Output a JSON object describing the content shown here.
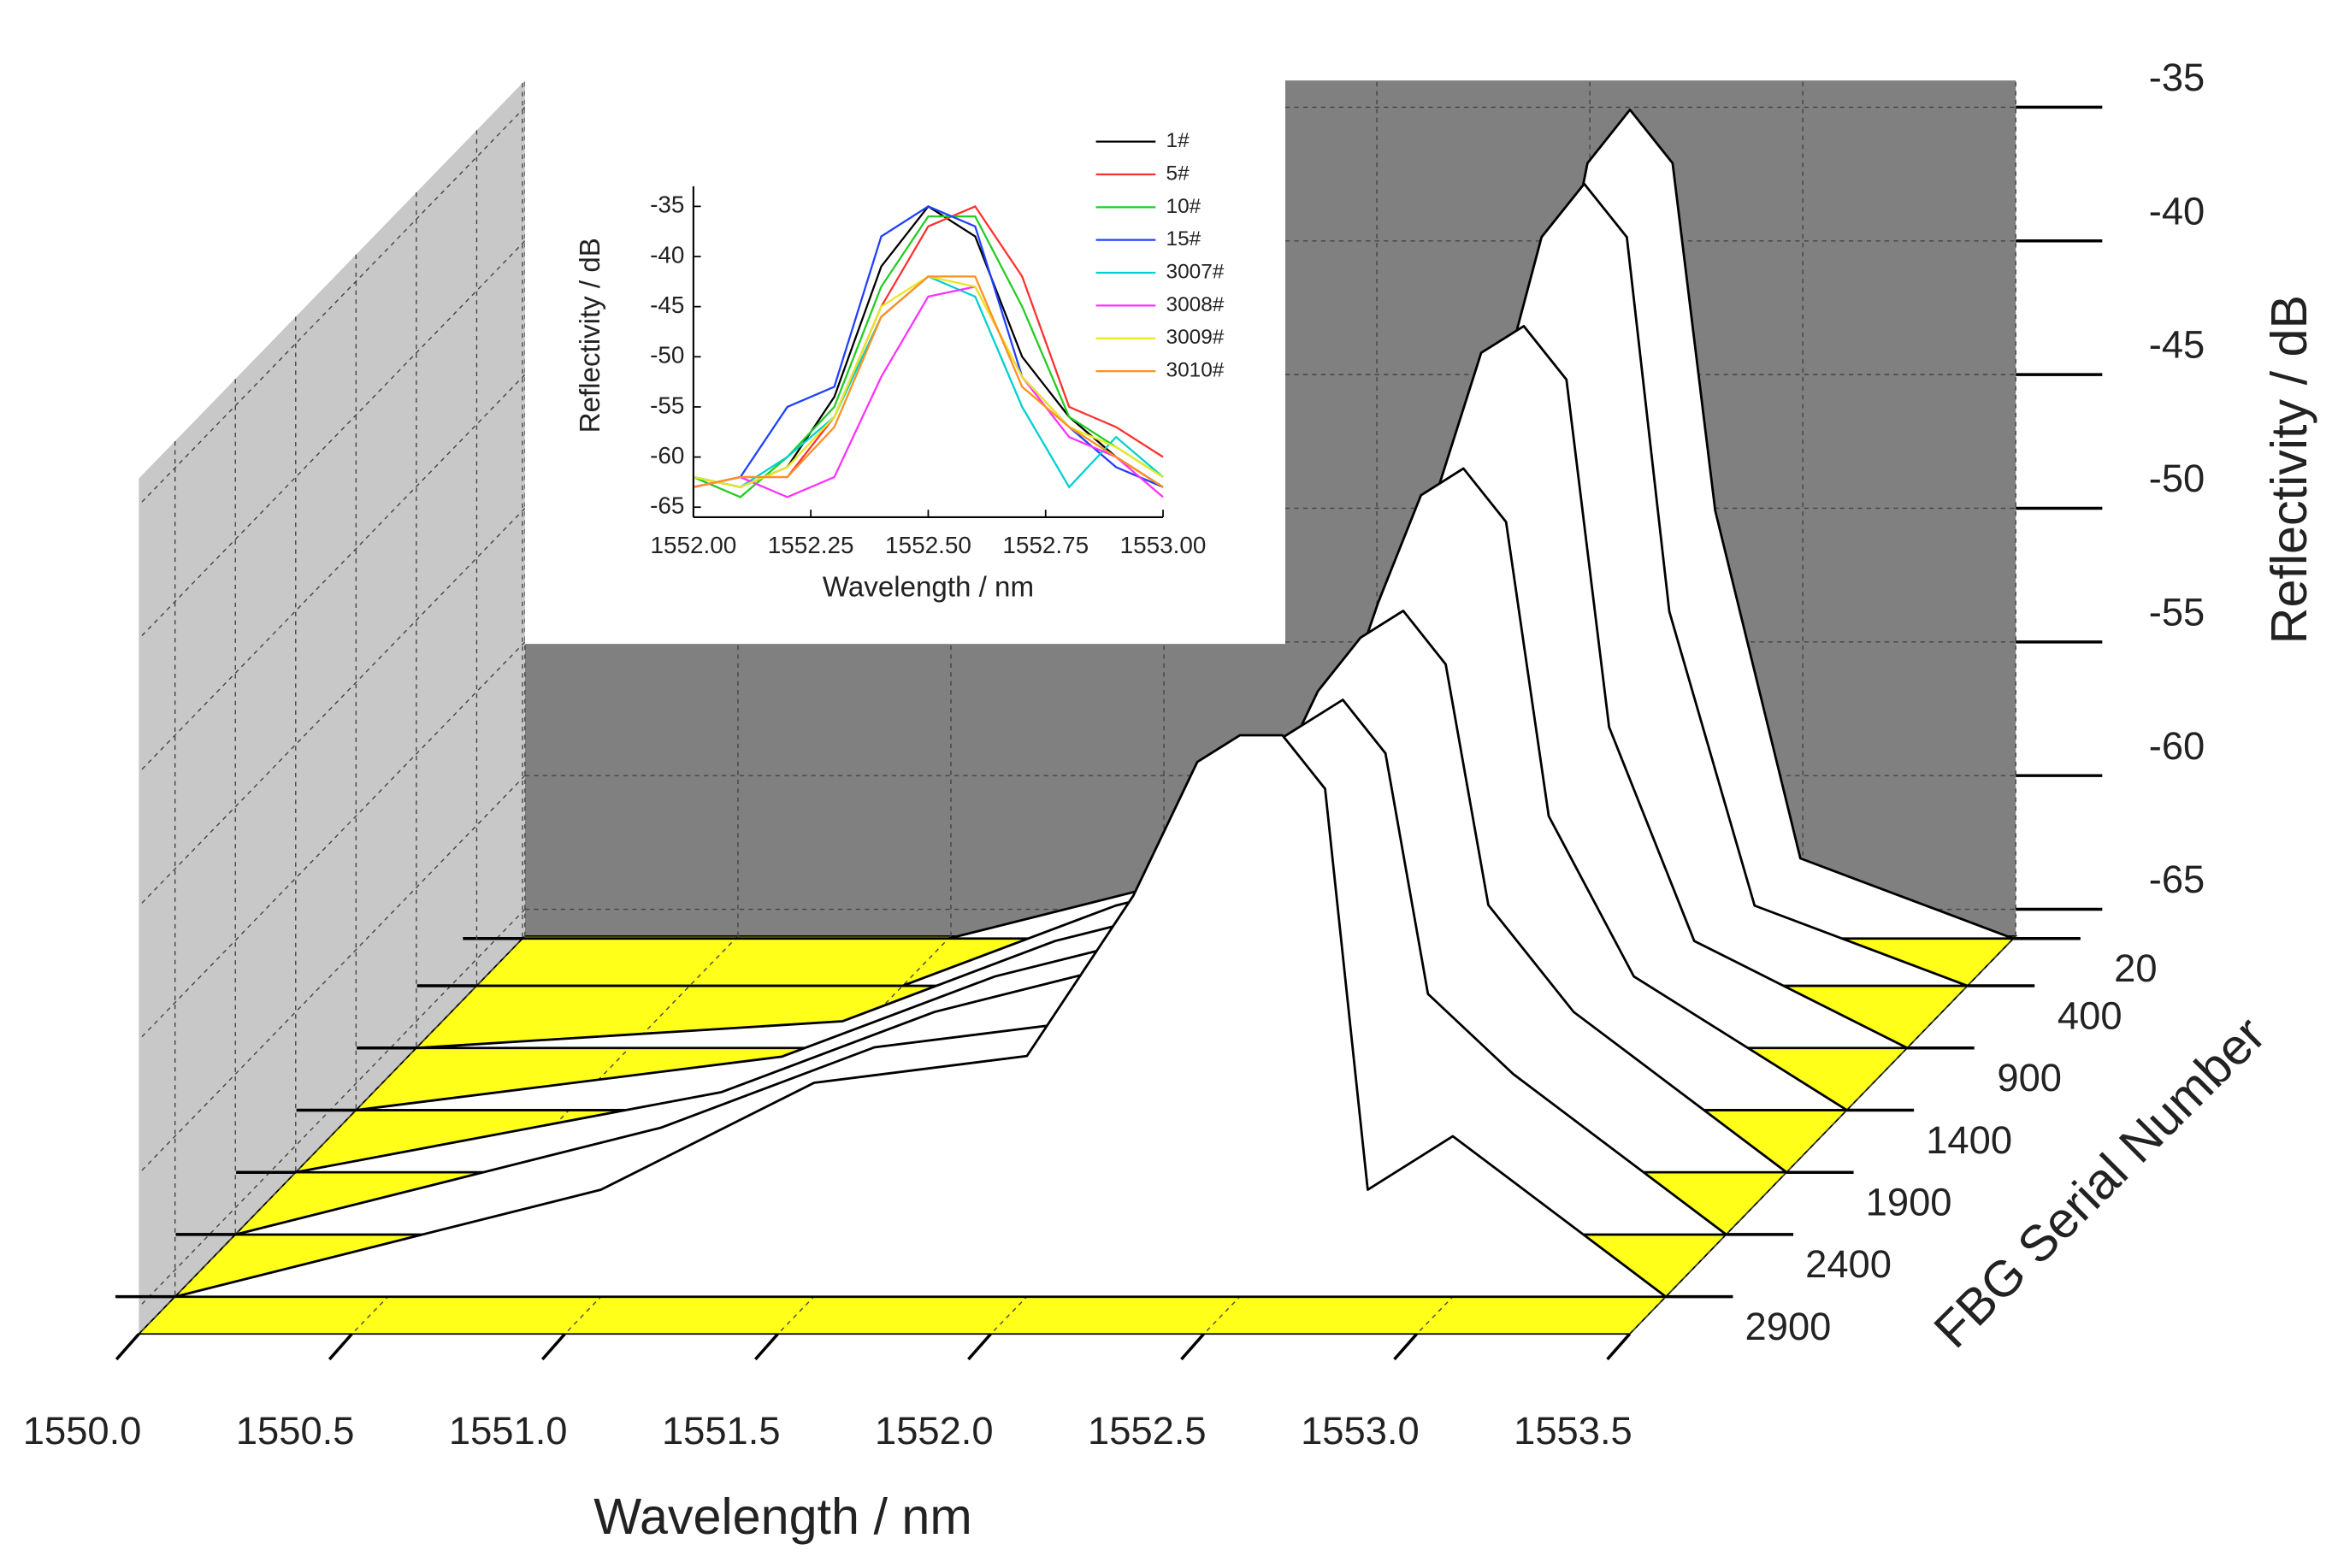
{
  "chart_data": [
    {
      "type": "waterfall3d",
      "xlabel": "Wavelength / nm",
      "ylabel": "Reflectivity / dB",
      "zlabel": "FBG Serial Number",
      "xlim": [
        1550.0,
        1553.5
      ],
      "xticks": [
        {
          "value": 1550.0,
          "label": "1550.0"
        },
        {
          "value": 1550.5,
          "label": "1550.5"
        },
        {
          "value": 1551.0,
          "label": "1551.0"
        },
        {
          "value": 1551.5,
          "label": "1551.5"
        },
        {
          "value": 1552.0,
          "label": "1552.0"
        },
        {
          "value": 1552.5,
          "label": "1552.5"
        },
        {
          "value": 1553.0,
          "label": "1553.0"
        },
        {
          "value": 1553.5,
          "label": "1553.5"
        }
      ],
      "ylim": [
        -66,
        -34
      ],
      "yticks": [
        -65,
        -60,
        -55,
        -50,
        -45,
        -40,
        -35
      ],
      "zlim": [
        0,
        3200
      ],
      "zticks": [
        20,
        400,
        900,
        1400,
        1900,
        2400,
        2900
      ],
      "floor_color": "#ffff1a",
      "back_wall_color": "#808080",
      "side_wall_color": "#c8c8c8",
      "x": [
        1550.0,
        1551.0,
        1551.5,
        1552.0,
        1552.25,
        1552.4,
        1552.5,
        1552.6,
        1552.7,
        1552.8,
        1553.0,
        1553.5
      ],
      "series": [
        {
          "z": 20,
          "color": "#ffffff",
          "values": [
            -66,
            -66,
            -64,
            -62,
            -58,
            -45,
            -37,
            -35,
            -37,
            -50,
            -63,
            -66
          ]
        },
        {
          "z": 400,
          "color": "#ffffff",
          "values": [
            -66,
            -66,
            -63,
            -61,
            -56,
            -44,
            -38,
            -36,
            -38,
            -52,
            -63,
            -66
          ]
        },
        {
          "z": 900,
          "color": "#ffffff",
          "values": [
            -66,
            -65,
            -62,
            -60,
            -55,
            -45,
            -40,
            -39,
            -41,
            -54,
            -62,
            -66
          ]
        },
        {
          "z": 1400,
          "color": "#ffffff",
          "values": [
            -66,
            -64,
            -61,
            -59,
            -54,
            -47,
            -43,
            -42,
            -44,
            -55,
            -61,
            -66
          ]
        },
        {
          "z": 1900,
          "color": "#ffffff",
          "values": [
            -66,
            -63,
            -60,
            -58,
            -53,
            -48,
            -46,
            -45,
            -47,
            -56,
            -60,
            -66
          ]
        },
        {
          "z": 2400,
          "color": "#ffffff",
          "values": [
            -66,
            -62,
            -59,
            -58,
            -52,
            -48,
            -47,
            -46,
            -48,
            -57,
            -60,
            -66
          ]
        },
        {
          "z": 2900,
          "color": "#ffffff",
          "values": [
            -66,
            -62,
            -58,
            -57,
            -51,
            -46,
            -45,
            -45,
            -47,
            -62,
            -60,
            -66
          ]
        }
      ]
    },
    {
      "type": "line",
      "xlabel": "Wavelength / nm",
      "ylabel": "Reflectivity / dB",
      "xlim": [
        1552.0,
        1553.0
      ],
      "xticks": [
        {
          "value": 1552.0,
          "label": "1552.00"
        },
        {
          "value": 1552.25,
          "label": "1552.25"
        },
        {
          "value": 1552.5,
          "label": "1552.50"
        },
        {
          "value": 1552.75,
          "label": "1552.75"
        },
        {
          "value": 1553.0,
          "label": "1553.00"
        }
      ],
      "ylim": [
        -66,
        -33
      ],
      "yticks": [
        -65,
        -60,
        -55,
        -50,
        -45,
        -40,
        -35
      ],
      "legend": "upper right",
      "x": [
        1552.0,
        1552.1,
        1552.2,
        1552.3,
        1552.4,
        1552.5,
        1552.6,
        1552.7,
        1552.8,
        1552.9,
        1553.0
      ],
      "series": [
        {
          "name": "1#",
          "color": "#000000",
          "values": [
            -62,
            -63,
            -61,
            -54,
            -41,
            -35,
            -38,
            -50,
            -56,
            -60,
            -63
          ]
        },
        {
          "name": "5#",
          "color": "#ff3030",
          "values": [
            -63,
            -62,
            -62,
            -56,
            -45,
            -37,
            -35,
            -42,
            -55,
            -57,
            -60
          ]
        },
        {
          "name": "10#",
          "color": "#22cc22",
          "values": [
            -62,
            -64,
            -60,
            -55,
            -43,
            -36,
            -36,
            -45,
            -56,
            -59,
            -62
          ]
        },
        {
          "name": "15#",
          "color": "#2040ff",
          "values": [
            -63,
            -62,
            -55,
            -53,
            -38,
            -35,
            -37,
            -52,
            -57,
            -61,
            -63
          ]
        },
        {
          "name": "3007#",
          "color": "#00d0d0",
          "values": [
            -62,
            -63,
            -60,
            -56,
            -46,
            -42,
            -44,
            -55,
            -63,
            -58,
            -62
          ]
        },
        {
          "name": "3008#",
          "color": "#ff30ff",
          "values": [
            -63,
            -62,
            -64,
            -62,
            -52,
            -44,
            -43,
            -52,
            -58,
            -60,
            -64
          ]
        },
        {
          "name": "3009#",
          "color": "#e8e820",
          "values": [
            -62,
            -63,
            -61,
            -56,
            -45,
            -42,
            -43,
            -52,
            -57,
            -59,
            -62
          ]
        },
        {
          "name": "3010#",
          "color": "#ff9020",
          "values": [
            -63,
            -62,
            -62,
            -57,
            -46,
            -42,
            -42,
            -53,
            -57,
            -60,
            -63
          ]
        }
      ]
    }
  ]
}
